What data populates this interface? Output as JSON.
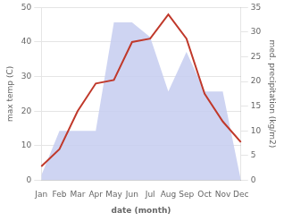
{
  "chart_data": {
    "type": "line",
    "xlabel": "date (month)",
    "ylabel": "max temp (C)",
    "y2label": "med. precipitation (kg/m2)",
    "categories": [
      "Jan",
      "Feb",
      "Mar",
      "Apr",
      "May",
      "Jun",
      "Jul",
      "Aug",
      "Sep",
      "Oct",
      "Nov",
      "Dec"
    ],
    "series": [
      {
        "type": "area",
        "axis": "y2",
        "color": "#c5cdf0",
        "values": [
          1,
          10,
          10,
          10,
          32,
          32,
          29,
          18,
          26,
          18,
          18,
          0
        ]
      },
      {
        "type": "line",
        "axis": "y",
        "color": "#c0392b",
        "values": [
          4,
          9,
          20,
          28,
          29,
          40,
          41,
          48,
          41,
          25,
          17,
          11
        ]
      }
    ],
    "ylim": [
      0,
      50
    ],
    "yticks": [
      0,
      10,
      20,
      30,
      40,
      50
    ],
    "y2lim": [
      0,
      35
    ],
    "y2ticks": [
      0,
      5,
      10,
      15,
      20,
      25,
      30,
      35
    ],
    "grid": true
  }
}
